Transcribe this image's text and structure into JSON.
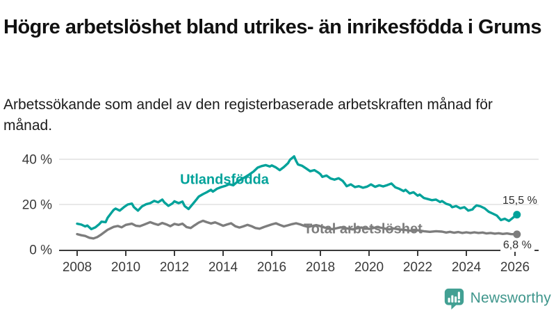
{
  "title": "Högre arbetslöshet bland utrikes- än inrikesfödda i Grums",
  "subtitle": "Arbetssökande som andel av den registerbaserade arbetskraften månad för månad.",
  "colors": {
    "foreign_born_series": "#00a29a",
    "total_series": "#7d7d7d",
    "axis": "#3a3a3a",
    "gridline": "#dadada",
    "brand_teal": "#3f968c"
  },
  "chart_data": {
    "type": "line",
    "title": "Högre arbetslöshet bland utrikes- än inrikesfödda i Grums",
    "xlabel": "",
    "ylabel": "",
    "unit": "%",
    "grid": "horizontal",
    "x_axis": {
      "ticks": [
        2008,
        2010,
        2012,
        2014,
        2016,
        2018,
        2020,
        2022,
        2024,
        2026
      ],
      "tick_labels": [
        "2008",
        "2010",
        "2012",
        "2014",
        "2016",
        "2018",
        "2020",
        "2022",
        "2024",
        "2026"
      ]
    },
    "y_axis": {
      "range": [
        0,
        44
      ],
      "ticks": [
        {
          "value": 0,
          "label": "0 %"
        },
        {
          "value": 20,
          "label": "20 %"
        },
        {
          "value": 40,
          "label": "40 %"
        }
      ]
    },
    "series": [
      {
        "name": "Utlandsfödda",
        "color": "#00a29a",
        "end_value_label": "15,5 %",
        "end_value": 15.5,
        "points": [
          [
            2008.0,
            11.5
          ],
          [
            2008.17,
            11.1
          ],
          [
            2008.33,
            10.3
          ],
          [
            2008.42,
            10.7
          ],
          [
            2008.58,
            9.1
          ],
          [
            2008.75,
            9.9
          ],
          [
            2008.92,
            11.4
          ],
          [
            2009.0,
            12.4
          ],
          [
            2009.17,
            12.2
          ],
          [
            2009.25,
            14.1
          ],
          [
            2009.42,
            16.5
          ],
          [
            2009.5,
            17.6
          ],
          [
            2009.58,
            18.2
          ],
          [
            2009.75,
            17.3
          ],
          [
            2009.92,
            18.8
          ],
          [
            2010.08,
            20.0
          ],
          [
            2010.25,
            20.4
          ],
          [
            2010.33,
            18.9
          ],
          [
            2010.5,
            17.3
          ],
          [
            2010.67,
            19.2
          ],
          [
            2010.83,
            20.1
          ],
          [
            2011.0,
            20.6
          ],
          [
            2011.17,
            21.6
          ],
          [
            2011.33,
            21.0
          ],
          [
            2011.5,
            22.2
          ],
          [
            2011.58,
            21.0
          ],
          [
            2011.75,
            19.4
          ],
          [
            2011.92,
            20.5
          ],
          [
            2012.0,
            21.4
          ],
          [
            2012.17,
            20.6
          ],
          [
            2012.33,
            21.3
          ],
          [
            2012.42,
            19.3
          ],
          [
            2012.58,
            18.0
          ],
          [
            2012.75,
            20.2
          ],
          [
            2012.92,
            22.4
          ],
          [
            2013.0,
            23.5
          ],
          [
            2013.17,
            24.6
          ],
          [
            2013.33,
            25.4
          ],
          [
            2013.5,
            26.5
          ],
          [
            2013.58,
            25.7
          ],
          [
            2013.75,
            27.0
          ],
          [
            2013.92,
            27.7
          ],
          [
            2014.08,
            28.2
          ],
          [
            2014.25,
            29.0
          ],
          [
            2014.42,
            28.5
          ],
          [
            2014.58,
            30.0
          ],
          [
            2014.75,
            31.2
          ],
          [
            2014.92,
            32.2
          ],
          [
            2015.08,
            33.3
          ],
          [
            2015.25,
            34.6
          ],
          [
            2015.42,
            36.3
          ],
          [
            2015.58,
            37.0
          ],
          [
            2015.75,
            37.4
          ],
          [
            2015.92,
            36.8
          ],
          [
            2016.0,
            37.3
          ],
          [
            2016.17,
            36.4
          ],
          [
            2016.33,
            35.2
          ],
          [
            2016.5,
            36.6
          ],
          [
            2016.67,
            38.3
          ],
          [
            2016.75,
            39.8
          ],
          [
            2016.92,
            41.3
          ],
          [
            2017.0,
            39.3
          ],
          [
            2017.08,
            37.7
          ],
          [
            2017.25,
            37.1
          ],
          [
            2017.42,
            35.9
          ],
          [
            2017.58,
            34.7
          ],
          [
            2017.75,
            35.2
          ],
          [
            2017.92,
            34.1
          ],
          [
            2018.0,
            33.4
          ],
          [
            2018.08,
            32.2
          ],
          [
            2018.25,
            32.8
          ],
          [
            2018.42,
            31.5
          ],
          [
            2018.58,
            31.0
          ],
          [
            2018.75,
            31.6
          ],
          [
            2018.92,
            30.4
          ],
          [
            2019.0,
            29.3
          ],
          [
            2019.08,
            28.1
          ],
          [
            2019.25,
            28.9
          ],
          [
            2019.42,
            27.7
          ],
          [
            2019.58,
            28.1
          ],
          [
            2019.75,
            27.4
          ],
          [
            2019.92,
            27.9
          ],
          [
            2020.08,
            28.9
          ],
          [
            2020.25,
            27.8
          ],
          [
            2020.42,
            28.5
          ],
          [
            2020.58,
            28.0
          ],
          [
            2020.75,
            28.6
          ],
          [
            2020.92,
            29.3
          ],
          [
            2021.08,
            27.6
          ],
          [
            2021.25,
            26.9
          ],
          [
            2021.42,
            25.9
          ],
          [
            2021.5,
            26.5
          ],
          [
            2021.67,
            24.9
          ],
          [
            2021.83,
            25.4
          ],
          [
            2022.0,
            23.9
          ],
          [
            2022.08,
            24.4
          ],
          [
            2022.25,
            22.9
          ],
          [
            2022.42,
            22.4
          ],
          [
            2022.58,
            21.9
          ],
          [
            2022.75,
            22.2
          ],
          [
            2022.92,
            21.1
          ],
          [
            2023.0,
            21.5
          ],
          [
            2023.17,
            20.3
          ],
          [
            2023.33,
            19.8
          ],
          [
            2023.42,
            18.8
          ],
          [
            2023.58,
            19.3
          ],
          [
            2023.75,
            18.3
          ],
          [
            2023.92,
            18.8
          ],
          [
            2024.08,
            17.3
          ],
          [
            2024.25,
            17.8
          ],
          [
            2024.33,
            18.8
          ],
          [
            2024.42,
            19.6
          ],
          [
            2024.58,
            19.2
          ],
          [
            2024.75,
            18.3
          ],
          [
            2024.92,
            16.8
          ],
          [
            2025.08,
            16.0
          ],
          [
            2025.25,
            15.1
          ],
          [
            2025.42,
            13.1
          ],
          [
            2025.58,
            13.7
          ],
          [
            2025.75,
            12.7
          ],
          [
            2025.92,
            14.2
          ],
          [
            2026.08,
            15.5
          ]
        ]
      },
      {
        "name": "Total arbetslöshet",
        "color": "#7d7d7d",
        "end_value_label": "6,8 %",
        "end_value": 6.8,
        "points": [
          [
            2008.0,
            6.9
          ],
          [
            2008.17,
            6.4
          ],
          [
            2008.33,
            6.1
          ],
          [
            2008.5,
            5.3
          ],
          [
            2008.67,
            5.0
          ],
          [
            2008.83,
            5.6
          ],
          [
            2009.0,
            6.8
          ],
          [
            2009.25,
            8.8
          ],
          [
            2009.5,
            10.1
          ],
          [
            2009.67,
            10.5
          ],
          [
            2009.83,
            9.9
          ],
          [
            2010.0,
            11.0
          ],
          [
            2010.25,
            11.5
          ],
          [
            2010.42,
            10.6
          ],
          [
            2010.58,
            10.4
          ],
          [
            2010.75,
            11.1
          ],
          [
            2011.0,
            12.2
          ],
          [
            2011.17,
            11.5
          ],
          [
            2011.33,
            11.0
          ],
          [
            2011.5,
            11.8
          ],
          [
            2011.67,
            11.2
          ],
          [
            2011.83,
            10.4
          ],
          [
            2012.0,
            11.4
          ],
          [
            2012.17,
            11.0
          ],
          [
            2012.33,
            11.5
          ],
          [
            2012.5,
            10.0
          ],
          [
            2012.67,
            9.6
          ],
          [
            2012.83,
            10.8
          ],
          [
            2013.0,
            12.0
          ],
          [
            2013.17,
            12.8
          ],
          [
            2013.33,
            12.2
          ],
          [
            2013.5,
            11.6
          ],
          [
            2013.67,
            12.1
          ],
          [
            2013.83,
            11.4
          ],
          [
            2014.0,
            10.6
          ],
          [
            2014.17,
            11.2
          ],
          [
            2014.33,
            11.7
          ],
          [
            2014.5,
            10.4
          ],
          [
            2014.67,
            9.8
          ],
          [
            2014.83,
            10.3
          ],
          [
            2015.0,
            11.0
          ],
          [
            2015.17,
            10.4
          ],
          [
            2015.33,
            9.6
          ],
          [
            2015.5,
            9.3
          ],
          [
            2015.67,
            10.0
          ],
          [
            2015.83,
            10.6
          ],
          [
            2016.0,
            11.2
          ],
          [
            2016.17,
            11.7
          ],
          [
            2016.33,
            11.0
          ],
          [
            2016.5,
            10.3
          ],
          [
            2016.67,
            10.8
          ],
          [
            2016.83,
            11.3
          ],
          [
            2017.0,
            11.7
          ],
          [
            2017.17,
            11.2
          ],
          [
            2017.33,
            10.6
          ],
          [
            2017.5,
            10.1
          ],
          [
            2017.67,
            10.5
          ],
          [
            2017.83,
            10.9
          ],
          [
            2018.0,
            10.4
          ],
          [
            2018.17,
            9.8
          ],
          [
            2018.33,
            9.4
          ],
          [
            2018.5,
            9.1
          ],
          [
            2018.67,
            9.5
          ],
          [
            2018.83,
            9.9
          ],
          [
            2019.0,
            9.6
          ],
          [
            2019.17,
            9.3
          ],
          [
            2019.33,
            9.0
          ],
          [
            2019.5,
            9.4
          ],
          [
            2019.67,
            9.8
          ],
          [
            2019.83,
            9.5
          ],
          [
            2020.0,
            9.2
          ],
          [
            2020.17,
            9.6
          ],
          [
            2020.33,
            10.0
          ],
          [
            2020.5,
            9.7
          ],
          [
            2020.67,
            9.3
          ],
          [
            2020.83,
            9.0
          ],
          [
            2021.0,
            9.4
          ],
          [
            2021.25,
            9.0
          ],
          [
            2021.5,
            8.7
          ],
          [
            2021.75,
            8.3
          ],
          [
            2022.0,
            8.6
          ],
          [
            2022.25,
            8.2
          ],
          [
            2022.5,
            7.9
          ],
          [
            2022.75,
            8.2
          ],
          [
            2023.0,
            8.0
          ],
          [
            2023.17,
            7.6
          ],
          [
            2023.33,
            7.9
          ],
          [
            2023.5,
            7.5
          ],
          [
            2023.67,
            7.8
          ],
          [
            2023.83,
            7.4
          ],
          [
            2024.0,
            7.7
          ],
          [
            2024.17,
            7.4
          ],
          [
            2024.33,
            7.7
          ],
          [
            2024.5,
            7.4
          ],
          [
            2024.67,
            7.6
          ],
          [
            2024.83,
            7.2
          ],
          [
            2025.0,
            7.4
          ],
          [
            2025.17,
            7.1
          ],
          [
            2025.33,
            7.3
          ],
          [
            2025.5,
            7.0
          ],
          [
            2025.67,
            7.2
          ],
          [
            2025.83,
            6.9
          ],
          [
            2026.08,
            6.8
          ]
        ]
      }
    ],
    "legend_position": "inline-labels"
  },
  "footer": {
    "brand": "Newsworthy",
    "logo_icon": "bar-chart-speech-bubble"
  }
}
